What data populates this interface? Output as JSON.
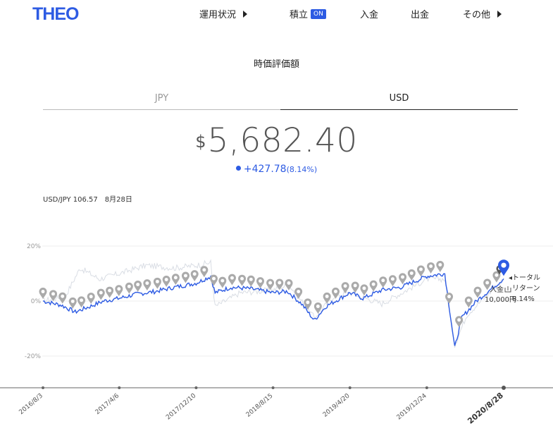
{
  "header": {
    "logo": "THEO",
    "nav": [
      {
        "label": "運用状況",
        "has_arrow": true
      },
      {
        "label": "積立",
        "badge": "ON"
      },
      {
        "label": "入金"
      },
      {
        "label": "出金"
      },
      {
        "label": "その他",
        "has_arrow": true
      }
    ]
  },
  "summary": {
    "title": "時価評価額",
    "tabs": [
      "JPY",
      "USD"
    ],
    "active_tab": "USD",
    "currency_symbol": "$",
    "amount": "5,682.40",
    "change": "+427.78",
    "change_pct": "(8.14%)",
    "fx_label": "USD/JPY 106.57",
    "fx_date": "8月28日"
  },
  "colors": {
    "accent": "#2d5be3",
    "marker_grey": "#aaaaaa",
    "benchmark": "#d9dde4"
  },
  "chart_data": {
    "type": "line",
    "y_ticks": [
      "20%",
      "0%",
      "-20%"
    ],
    "ylim": [
      -30,
      20
    ],
    "x_range": [
      "2016-08-03",
      "2020-08-28"
    ],
    "x_tick_labels": [
      "2016/8/3",
      "2017/4/6",
      "2017/12/10",
      "2018/8/15",
      "2019/4/20",
      "2019/12/24",
      "2020/8/28"
    ],
    "x_tick_dates": [
      "2016-08-03",
      "2017-04-06",
      "2017-12-10",
      "2018-08-15",
      "2019-04-20",
      "2019-12-24",
      "2020-08-28"
    ],
    "series": [
      {
        "color": "#2d5be3",
        "points": [
          [
            "2016-08-03",
            0
          ],
          [
            "2016-10-01",
            -1.5
          ],
          [
            "2016-11-15",
            -4
          ],
          [
            "2017-01-01",
            -2
          ],
          [
            "2017-02-15",
            0
          ],
          [
            "2017-04-06",
            1
          ],
          [
            "2017-06-01",
            2.5
          ],
          [
            "2017-08-01",
            3.5
          ],
          [
            "2017-10-01",
            5
          ],
          [
            "2017-12-10",
            6.5
          ],
          [
            "2018-01-26",
            9
          ],
          [
            "2018-02-09",
            3
          ],
          [
            "2018-04-01",
            5
          ],
          [
            "2018-06-01",
            4.5
          ],
          [
            "2018-08-15",
            3
          ],
          [
            "2018-10-01",
            3.5
          ],
          [
            "2018-11-15",
            -1
          ],
          [
            "2018-12-26",
            -7
          ],
          [
            "2019-02-01",
            -2
          ],
          [
            "2019-04-20",
            3
          ],
          [
            "2019-06-01",
            1
          ],
          [
            "2019-08-01",
            4
          ],
          [
            "2019-10-01",
            5
          ],
          [
            "2019-12-24",
            9
          ],
          [
            "2020-02-20",
            10
          ],
          [
            "2020-03-23",
            -17
          ],
          [
            "2020-04-15",
            -6
          ],
          [
            "2020-06-01",
            0
          ],
          [
            "2020-08-28",
            8.1
          ]
        ]
      },
      {
        "color": "#d9dde4",
        "points": [
          [
            "2016-08-03",
            0
          ],
          [
            "2016-10-15",
            2
          ],
          [
            "2016-12-01",
            12
          ],
          [
            "2017-02-01",
            8
          ],
          [
            "2017-04-06",
            10
          ],
          [
            "2017-07-01",
            13
          ],
          [
            "2017-10-01",
            12
          ],
          [
            "2017-12-10",
            13
          ],
          [
            "2018-01-26",
            14
          ],
          [
            "2018-02-09",
            -2
          ],
          [
            "2018-05-01",
            3
          ],
          [
            "2018-08-15",
            4
          ],
          [
            "2018-10-05",
            6
          ],
          [
            "2018-12-26",
            -6
          ],
          [
            "2019-03-01",
            2
          ],
          [
            "2019-04-20",
            3
          ],
          [
            "2019-08-01",
            -1
          ],
          [
            "2019-12-24",
            8
          ],
          [
            "2020-02-20",
            8
          ],
          [
            "2020-03-23",
            -16
          ],
          [
            "2020-05-01",
            -5
          ],
          [
            "2020-08-28",
            8
          ]
        ]
      }
    ],
    "event_dates": [
      "2016-08-03",
      "2016-09-05",
      "2016-10-05",
      "2016-11-07",
      "2016-12-05",
      "2017-01-05",
      "2017-02-06",
      "2017-03-06",
      "2017-04-05",
      "2017-05-08",
      "2017-06-05",
      "2017-07-05",
      "2017-08-07",
      "2017-09-05",
      "2017-10-05",
      "2017-11-06",
      "2017-12-05",
      "2018-01-05",
      "2018-02-05",
      "2018-03-05",
      "2018-04-05",
      "2018-05-07",
      "2018-06-05",
      "2018-07-05",
      "2018-08-06",
      "2018-09-05",
      "2018-10-05",
      "2018-11-05",
      "2018-12-05",
      "2019-01-07",
      "2019-02-05",
      "2019-03-05",
      "2019-04-05",
      "2019-05-07",
      "2019-06-05",
      "2019-07-05",
      "2019-08-05",
      "2019-09-05",
      "2019-10-07",
      "2019-11-05",
      "2019-12-05",
      "2020-01-06",
      "2020-02-05",
      "2020-03-05",
      "2020-04-06",
      "2020-05-07",
      "2020-06-05",
      "2020-07-06",
      "2020-08-05"
    ],
    "annotations": {
      "total_return_label": "トータル",
      "total_return_label2": "リターン",
      "total_return_value": "8.14%",
      "deposit_label": "入金",
      "deposit_value": "10,000円"
    }
  }
}
